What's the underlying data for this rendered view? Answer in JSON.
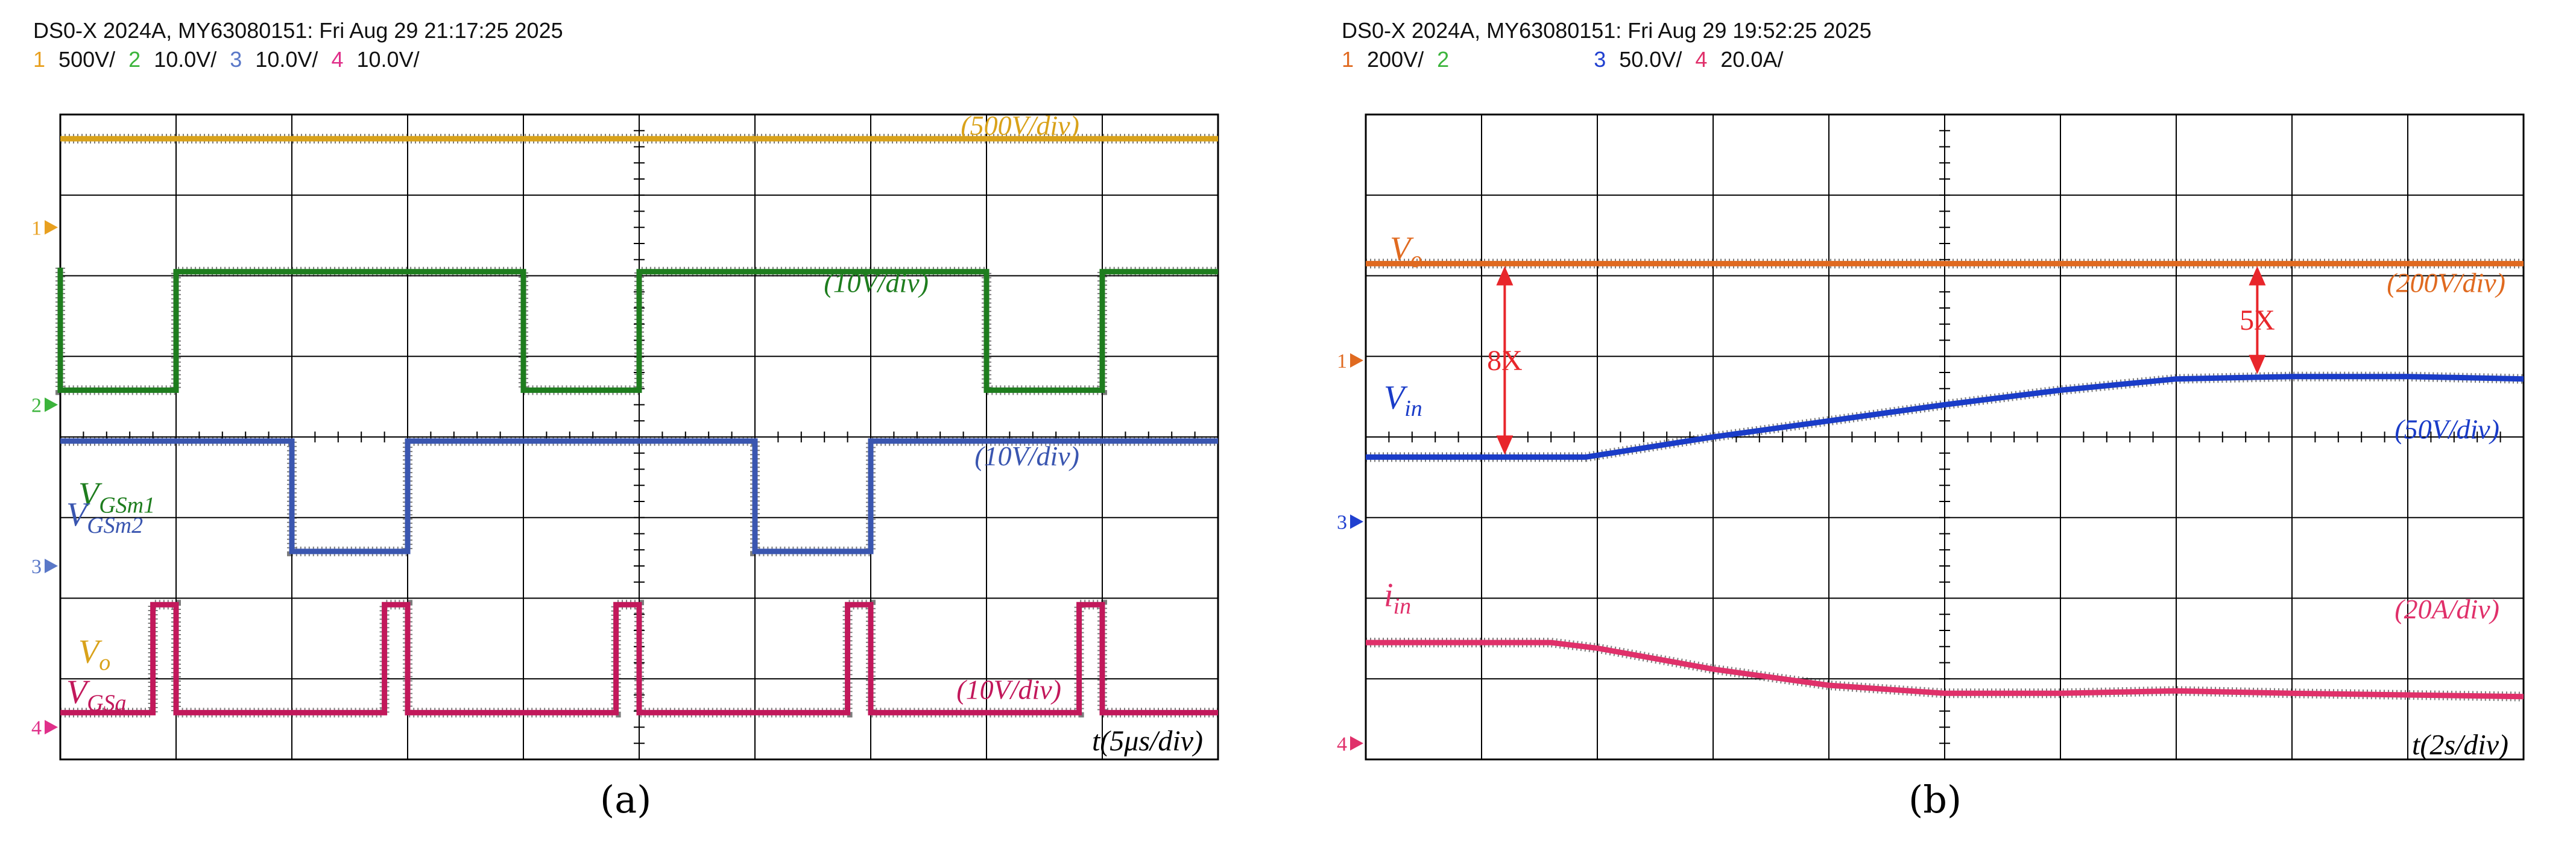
{
  "panels": [
    {
      "title": "DS0-X 2024A, MY63080151: Fri Aug 29 21:17:25 2025",
      "channel_settings": [
        {
          "num": "1",
          "scale": "500V/",
          "color": "#e8a020"
        },
        {
          "num": "2",
          "scale": "10.0V/",
          "color": "#3cb43c"
        },
        {
          "num": "3",
          "scale": "10.0V/",
          "color": "#5a78c8"
        },
        {
          "num": "4",
          "scale": "10.0V/",
          "color": "#e0308a"
        }
      ],
      "caption": "(a)",
      "time_label": "t(5μs/div)"
    },
    {
      "title": "DS0-X 2024A, MY63080151: Fri Aug 29 19:52:25 2025",
      "channel_settings": [
        {
          "num": "1",
          "scale": "200V/",
          "color": "#e06a20"
        },
        {
          "num": "2",
          "scale": "",
          "color": "#3cb43c"
        },
        {
          "num": "3",
          "scale": "50.0V/",
          "color": "#2040d0"
        },
        {
          "num": "4",
          "scale": "20.0A/",
          "color": "#e0306a"
        }
      ],
      "caption": "(b)",
      "time_label": "t(2s/div)"
    }
  ],
  "chart_data": [
    {
      "type": "line",
      "grid": true,
      "x_unit_label": "t(5μs/div)",
      "xlim_div": [
        0,
        10
      ],
      "ylim_div": [
        0,
        8
      ],
      "series": [
        {
          "name": "Vo",
          "name_sub": "o",
          "scale_label": "(500V/div)",
          "color": "#d9a21a",
          "x": [
            0,
            10
          ],
          "y": [
            7.7,
            7.7
          ]
        },
        {
          "name": "VGSm1",
          "name_sub": "GSm1",
          "scale_label": "(10V/div)",
          "color": "#1e7d1e",
          "x": [
            0,
            0,
            1,
            1,
            4,
            4,
            5,
            5,
            8,
            8,
            9,
            9,
            10
          ],
          "y": [
            6.1,
            4.58,
            4.58,
            6.05,
            6.05,
            4.58,
            4.58,
            6.05,
            6.05,
            4.58,
            4.58,
            6.05,
            6.05
          ]
        },
        {
          "name": "VGSm2",
          "name_sub": "GSm2",
          "scale_label": "(10V/div)",
          "color": "#3a56b0",
          "x": [
            0,
            2,
            2,
            3,
            3,
            6,
            6,
            7,
            7,
            10
          ],
          "y": [
            3.95,
            3.95,
            2.58,
            2.58,
            3.95,
            3.95,
            2.58,
            2.58,
            3.95,
            3.95
          ]
        },
        {
          "name": "VGSa",
          "name_sub": "GSa",
          "scale_label": "(10V/div)",
          "color": "#c2185b",
          "x": [
            0,
            0.8,
            0.8,
            1,
            1,
            2.8,
            2.8,
            3,
            3,
            4.8,
            4.8,
            5,
            5,
            6.8,
            6.8,
            7,
            7,
            8.8,
            8.8,
            9,
            9,
            10
          ],
          "y": [
            0.58,
            0.58,
            1.92,
            1.92,
            0.58,
            0.58,
            1.92,
            1.92,
            0.58,
            0.58,
            1.92,
            1.92,
            0.58,
            0.58,
            1.92,
            1.92,
            0.58,
            0.58,
            1.92,
            1.92,
            0.58,
            0.58
          ]
        }
      ],
      "ground_markers": [
        {
          "label": "1",
          "y_div": 6.6,
          "color": "#e8a020"
        },
        {
          "label": "2",
          "y_div": 4.4,
          "color": "#3cb43c"
        },
        {
          "label": "3",
          "y_div": 2.4,
          "color": "#5a78c8"
        },
        {
          "label": "4",
          "y_div": 0.4,
          "color": "#e0308a"
        }
      ]
    },
    {
      "type": "line",
      "grid": true,
      "x_unit_label": "t(2s/div)",
      "xlim_div": [
        0,
        10
      ],
      "ylim_div": [
        0,
        8
      ],
      "series": [
        {
          "name": "Vo",
          "name_sub": "o",
          "scale_label": "(200V/div)",
          "color": "#e06a20",
          "x": [
            0,
            10
          ],
          "y": [
            6.15,
            6.15
          ]
        },
        {
          "name": "Vin",
          "name_sub": "in",
          "scale_label": "(50V/div)",
          "color": "#1a3cc8",
          "x": [
            0,
            1.9,
            3,
            4,
            5,
            6,
            7,
            8,
            9,
            10
          ],
          "y": [
            3.75,
            3.75,
            4.0,
            4.2,
            4.4,
            4.58,
            4.72,
            4.75,
            4.75,
            4.72
          ]
        },
        {
          "name": "iin",
          "name_sub": "in",
          "scale_label": "(20A/div)",
          "color": "#e0306a",
          "x": [
            0,
            1.6,
            2,
            3,
            4,
            5,
            6,
            7,
            8,
            9,
            10
          ],
          "y": [
            1.45,
            1.45,
            1.38,
            1.12,
            0.92,
            0.82,
            0.82,
            0.85,
            0.82,
            0.8,
            0.78
          ]
        }
      ],
      "annotations": [
        {
          "text": "8X",
          "x_div": 1.2,
          "y_from_div": 6.15,
          "y_to_div": 3.75,
          "color": "#e8262b"
        },
        {
          "text": "5X",
          "x_div": 7.7,
          "y_from_div": 6.15,
          "y_to_div": 4.75,
          "color": "#e8262b"
        }
      ],
      "ground_markers": [
        {
          "label": "1",
          "y_div": 4.95,
          "color": "#e06a20"
        },
        {
          "label": "3",
          "y_div": 2.95,
          "color": "#2040d0"
        },
        {
          "label": "4",
          "y_div": 0.2,
          "color": "#e0306a"
        }
      ]
    }
  ]
}
